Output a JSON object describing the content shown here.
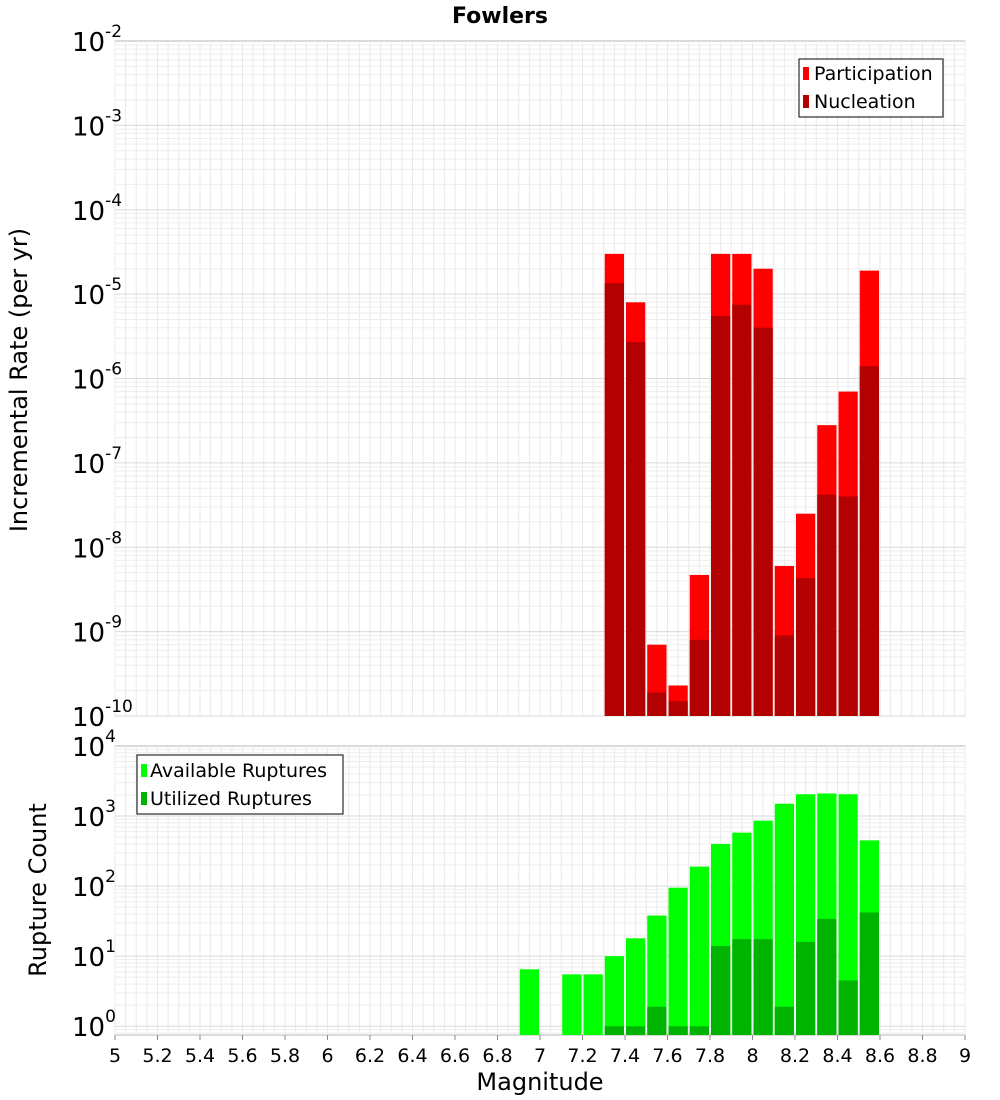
{
  "chart_data": [
    {
      "type": "bar",
      "title": "Fowlers",
      "xlabel": "",
      "ylabel": "Incremental Rate (per yr)",
      "xlim": [
        5,
        9
      ],
      "yscale": "log",
      "ylim": [
        1e-10,
        0.01
      ],
      "grid": true,
      "legend_position": "top-right",
      "x": [
        7.35,
        7.45,
        7.55,
        7.65,
        7.75,
        7.85,
        7.95,
        8.05,
        8.15,
        8.25,
        8.35,
        8.45,
        8.55
      ],
      "series": [
        {
          "name": "Participation",
          "color": "#ff0000",
          "values": [
            3e-05,
            8e-06,
            7e-10,
            2.3e-10,
            4.7e-09,
            3e-05,
            3e-05,
            2e-05,
            6e-09,
            2.5e-08,
            2.8e-07,
            7e-07,
            1.9e-05
          ]
        },
        {
          "name": "Nucleation",
          "color": "#b30000",
          "values": [
            1.35e-05,
            2.7e-06,
            1.9e-10,
            1.5e-10,
            8e-10,
            5.5e-06,
            7.5e-06,
            4e-06,
            9e-10,
            4.3e-09,
            4.2e-08,
            4e-08,
            1.4e-06
          ]
        }
      ],
      "y_tick_labels": [
        {
          "base": "10",
          "exp": "-2"
        },
        {
          "base": "10",
          "exp": "-3"
        },
        {
          "base": "10",
          "exp": "-4"
        },
        {
          "base": "10",
          "exp": "-5"
        },
        {
          "base": "10",
          "exp": "-6"
        },
        {
          "base": "10",
          "exp": "-7"
        },
        {
          "base": "10",
          "exp": "-8"
        },
        {
          "base": "10",
          "exp": "-9"
        },
        {
          "base": "10",
          "exp": "-10"
        }
      ]
    },
    {
      "type": "bar",
      "title": "",
      "xlabel": "Magnitude",
      "ylabel": "Rupture Count",
      "xlim": [
        5,
        9
      ],
      "yscale": "log",
      "ylim": [
        0.75,
        10000
      ],
      "grid": true,
      "legend_position": "top-left",
      "x": [
        6.95,
        7.15,
        7.25,
        7.35,
        7.45,
        7.55,
        7.65,
        7.75,
        7.85,
        7.95,
        8.05,
        8.15,
        8.25,
        8.35,
        8.45,
        8.55
      ],
      "series": [
        {
          "name": "Available Ruptures",
          "color": "#00ff00",
          "values": [
            6.5,
            5.5,
            5.5,
            10,
            18,
            38,
            95,
            190,
            400,
            580,
            860,
            1500,
            2050,
            2100,
            2050,
            450
          ]
        },
        {
          "name": "Utilized Ruptures",
          "color": "#00b300",
          "values": [
            0,
            0,
            0,
            1,
            1,
            1.9,
            1,
            1,
            14,
            17.5,
            17.5,
            1.9,
            16,
            34,
            4.5,
            42
          ]
        }
      ],
      "y_tick_labels": [
        {
          "base": "10",
          "exp": "4"
        },
        {
          "base": "10",
          "exp": "3"
        },
        {
          "base": "10",
          "exp": "2"
        },
        {
          "base": "10",
          "exp": "1"
        },
        {
          "base": "10",
          "exp": "0"
        }
      ],
      "x_tick_labels": [
        "5",
        "5.2",
        "5.4",
        "5.6",
        "5.8",
        "6",
        "6.2",
        "6.4",
        "6.6",
        "6.8",
        "7",
        "7.2",
        "7.4",
        "7.6",
        "7.8",
        "8",
        "8.2",
        "8.4",
        "8.6",
        "8.8",
        "9"
      ]
    }
  ]
}
